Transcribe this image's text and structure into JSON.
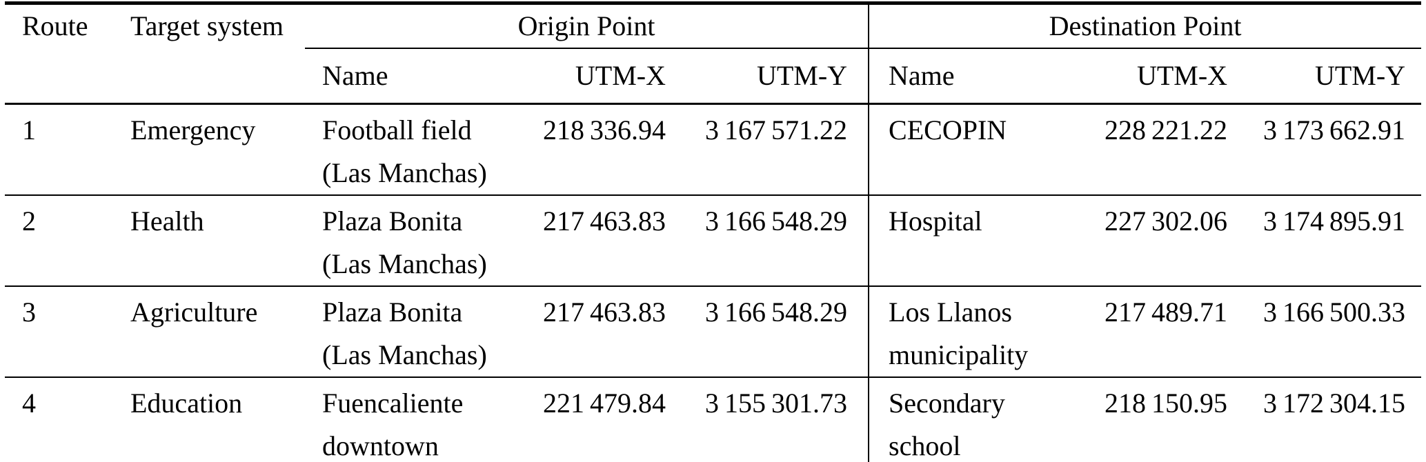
{
  "table": {
    "headers": {
      "route": "Route",
      "target_system": "Target system",
      "origin_point": "Origin Point",
      "destination_point": "Destination Point",
      "sub": {
        "name": "Name",
        "utm_x": "UTM-X",
        "utm_y": "UTM-Y"
      }
    },
    "rows": [
      {
        "route": "1",
        "target": "Emergency",
        "origin": {
          "name": "Football field\n(Las Manchas)",
          "utm_x": "218 336.94",
          "utm_y": "3 167 571.22"
        },
        "dest": {
          "name": "CECOPIN",
          "utm_x": "228 221.22",
          "utm_y": "3 173 662.91"
        }
      },
      {
        "route": "2",
        "target": "Health",
        "origin": {
          "name": "Plaza Bonita\n(Las Manchas)",
          "utm_x": "217 463.83",
          "utm_y": "3 166 548.29"
        },
        "dest": {
          "name": "Hospital",
          "utm_x": "227 302.06",
          "utm_y": "3 174 895.91"
        }
      },
      {
        "route": "3",
        "target": "Agriculture",
        "origin": {
          "name": "Plaza Bonita\n(Las Manchas)",
          "utm_x": "217 463.83",
          "utm_y": "3 166 548.29"
        },
        "dest": {
          "name": "Los Llanos\nmunicipality",
          "utm_x": "217 489.71",
          "utm_y": "3 166 500.33"
        }
      },
      {
        "route": "4",
        "target": "Education",
        "origin": {
          "name": "Fuencaliente\ndowntown",
          "utm_x": "221 479.84",
          "utm_y": "3 155 301.73"
        },
        "dest": {
          "name": "Secondary\nschool",
          "utm_x": "218 150.95",
          "utm_y": "3 172 304.15"
        }
      }
    ]
  }
}
